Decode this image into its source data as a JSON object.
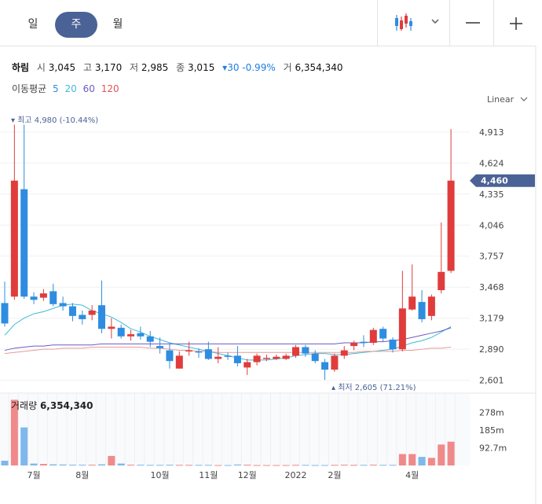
{
  "period_tabs": [
    {
      "label": "일",
      "active": false
    },
    {
      "label": "주",
      "active": true
    },
    {
      "label": "월",
      "active": false
    }
  ],
  "toolbar": {
    "chart_type_icon": "candlestick-icon",
    "dropdown_icon": "chevron-down-icon",
    "zoom_out": "—",
    "zoom_in": "+"
  },
  "stock": {
    "name": "하림",
    "open_label": "시",
    "open": "3,045",
    "high_label": "고",
    "high": "3,170",
    "low_label": "저",
    "low": "2,985",
    "close_label": "종",
    "close": "3,015",
    "change": "▾30 -0.99%",
    "volume_label": "거",
    "volume": "6,354,340"
  },
  "moving_avg": {
    "label": "이동평균",
    "periods": [
      "5",
      "20",
      "60",
      "120"
    ],
    "colors": [
      "#2e8de0",
      "#3ebbd8",
      "#6a5bc2",
      "#e05555"
    ]
  },
  "scale_mode": "Linear",
  "chart_data": {
    "type": "candlestick",
    "y_ticks": [
      "4,913",
      "4,624",
      "4,335",
      "4,046",
      "3,757",
      "3,468",
      "3,179",
      "2,890",
      "2,601"
    ],
    "ylim": [
      2540,
      5080
    ],
    "current_price": "4,460",
    "max_label": "최고 4,980 (-10.44%)",
    "min_label": "최저 2,605 (71.21%)",
    "x_labels": [
      {
        "label": "7월",
        "i": 3
      },
      {
        "label": "8월",
        "i": 8
      },
      {
        "label": "10월",
        "i": 16
      },
      {
        "label": "11월",
        "i": 21
      },
      {
        "label": "12월",
        "i": 25
      },
      {
        "label": "2022",
        "i": 30
      },
      {
        "label": "2월",
        "i": 34
      },
      {
        "label": "4월",
        "i": 42
      }
    ],
    "candles": [
      [
        3320,
        3130,
        3520,
        3100
      ],
      [
        3380,
        4460,
        4980,
        3350
      ],
      [
        4380,
        3380,
        4980,
        3360
      ],
      [
        3380,
        3350,
        3420,
        3310
      ],
      [
        3370,
        3410,
        3450,
        3340
      ],
      [
        3430,
        3310,
        3500,
        3290
      ],
      [
        3320,
        3290,
        3380,
        3250
      ],
      [
        3290,
        3200,
        3320,
        3150
      ],
      [
        3210,
        3170,
        3250,
        3120
      ],
      [
        3210,
        3250,
        3300,
        3160
      ],
      [
        3300,
        3080,
        3530,
        3040
      ],
      [
        3080,
        3100,
        3180,
        2990
      ],
      [
        3090,
        3010,
        3120,
        2990
      ],
      [
        3010,
        3030,
        3070,
        2970
      ],
      [
        3040,
        3010,
        3100,
        2980
      ],
      [
        3010,
        2960,
        3060,
        2910
      ],
      [
        2920,
        2900,
        3000,
        2850
      ],
      [
        2880,
        2780,
        2950,
        2710
      ],
      [
        2710,
        2830,
        2870,
        2710
      ],
      [
        2880,
        2880,
        2960,
        2830
      ],
      [
        2870,
        2860,
        2900,
        2810
      ],
      [
        2890,
        2800,
        2960,
        2790
      ],
      [
        2800,
        2820,
        2910,
        2760
      ],
      [
        2830,
        2820,
        2860,
        2790
      ],
      [
        2830,
        2760,
        2920,
        2730
      ],
      [
        2720,
        2770,
        2800,
        2650
      ],
      [
        2770,
        2830,
        2850,
        2740
      ],
      [
        2800,
        2810,
        2840,
        2780
      ],
      [
        2800,
        2820,
        2840,
        2790
      ],
      [
        2800,
        2830,
        2850,
        2790
      ],
      [
        2830,
        2910,
        2930,
        2810
      ],
      [
        2910,
        2850,
        2930,
        2820
      ],
      [
        2850,
        2780,
        2880,
        2760
      ],
      [
        2770,
        2700,
        2800,
        2605
      ],
      [
        2700,
        2830,
        2850,
        2680
      ],
      [
        2830,
        2880,
        2920,
        2800
      ],
      [
        2920,
        2950,
        2970,
        2880
      ],
      [
        2960,
        2950,
        3020,
        2910
      ],
      [
        2950,
        3070,
        3090,
        2930
      ],
      [
        3080,
        2990,
        3100,
        2960
      ],
      [
        2980,
        2890,
        3000,
        2860
      ],
      [
        2890,
        3270,
        3620,
        2870
      ],
      [
        3260,
        3380,
        3680,
        3250
      ],
      [
        3330,
        3170,
        3440,
        3140
      ],
      [
        3200,
        3380,
        3400,
        3160
      ],
      [
        3440,
        3610,
        4070,
        3410
      ],
      [
        3620,
        4460,
        4940,
        3600
      ]
    ],
    "ma_lines": [
      {
        "period": "20",
        "color": "#3ebbd8",
        "values": [
          3020,
          3120,
          3180,
          3220,
          3240,
          3270,
          3300,
          3310,
          3300,
          3250,
          3220,
          3190,
          3140,
          3080,
          3050,
          3010,
          2980,
          2950,
          2930,
          2910,
          2890,
          2870,
          2850,
          2830,
          2810,
          2790,
          2790,
          2790,
          2800,
          2810,
          2830,
          2840,
          2850,
          2850,
          2840,
          2840,
          2850,
          2860,
          2870,
          2880,
          2890,
          2920,
          2950,
          2970,
          3000,
          3050,
          3100
        ]
      },
      {
        "period": "60",
        "color": "#6a5bc2",
        "values": [
          2880,
          2900,
          2910,
          2920,
          2920,
          2930,
          2930,
          2930,
          2930,
          2930,
          2940,
          2940,
          2940,
          2940,
          2940,
          2940,
          2940,
          2940,
          2940,
          2940,
          2940,
          2940,
          2940,
          2940,
          2940,
          2940,
          2940,
          2940,
          2940,
          2940,
          2940,
          2940,
          2940,
          2940,
          2940,
          2950,
          2950,
          2950,
          2960,
          2960,
          2970,
          2980,
          3000,
          3020,
          3040,
          3060,
          3090
        ]
      },
      {
        "period": "120",
        "color": "#e89a9a",
        "values": [
          2850,
          2860,
          2870,
          2880,
          2890,
          2890,
          2900,
          2900,
          2900,
          2910,
          2910,
          2910,
          2910,
          2910,
          2910,
          2900,
          2900,
          2890,
          2880,
          2880,
          2870,
          2870,
          2860,
          2860,
          2860,
          2860,
          2860,
          2860,
          2860,
          2860,
          2860,
          2860,
          2860,
          2860,
          2860,
          2860,
          2860,
          2870,
          2870,
          2870,
          2870,
          2880,
          2880,
          2890,
          2900,
          2900,
          2910
        ]
      }
    ],
    "volume": {
      "label": "거래량",
      "value": "6,354,340",
      "y_ticks": [
        "278m",
        "185m",
        "92.7m"
      ],
      "ylim": [
        0,
        380
      ],
      "values": [
        25,
        345,
        200,
        10,
        8,
        6,
        5,
        4,
        4,
        4,
        6,
        50,
        10,
        4,
        4,
        3,
        3,
        4,
        3,
        3,
        3,
        3,
        2,
        2,
        5,
        4,
        2,
        2,
        2,
        2,
        3,
        3,
        2,
        2,
        3,
        4,
        3,
        3,
        4,
        3,
        3,
        60,
        60,
        45,
        40,
        110,
        125
      ]
    }
  }
}
